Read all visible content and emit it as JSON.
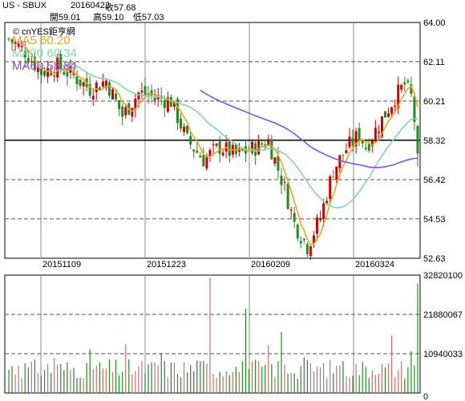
{
  "header": {
    "symbol": "US - SBUX",
    "date": "20160422",
    "close_label": "收57.68",
    "open_label": "開59.01",
    "high_label": "高59.10",
    "low_label": "低57.03"
  },
  "watermark": "© cnYES鉅亨網",
  "legend": {
    "ma5": "MA5 60.20",
    "ma20": "MA20 60.34",
    "ma60": "MA60 58.84"
  },
  "colors": {
    "up": "#cc0000",
    "down": "#228b22",
    "ma5": "#f0a020",
    "ma20": "#7fd8a8",
    "ma60": "#8a4fd8",
    "grid": "#555555",
    "volume_bar": "#c87070"
  },
  "chart_data": {
    "type": "candlestick",
    "price_axis": {
      "ticks": [
        "64.00",
        "62.11",
        "60.21",
        "58.32",
        "56.42",
        "54.53",
        "52.63"
      ],
      "ylim": [
        52.63,
        64.0
      ]
    },
    "volume_axis": {
      "ticks": [
        "32820100",
        "21880067",
        "10940033",
        "0"
      ],
      "ylim": [
        0,
        32820100
      ]
    },
    "x_ticks": [
      "20151109",
      "20151223",
      "20160209",
      "20160324"
    ],
    "last_close": 57.68,
    "last_open": 59.01,
    "last_high": 59.1,
    "last_low": 57.03,
    "ma_last": {
      "ma5": 60.2,
      "ma20": 60.34,
      "ma60": 58.84
    }
  }
}
